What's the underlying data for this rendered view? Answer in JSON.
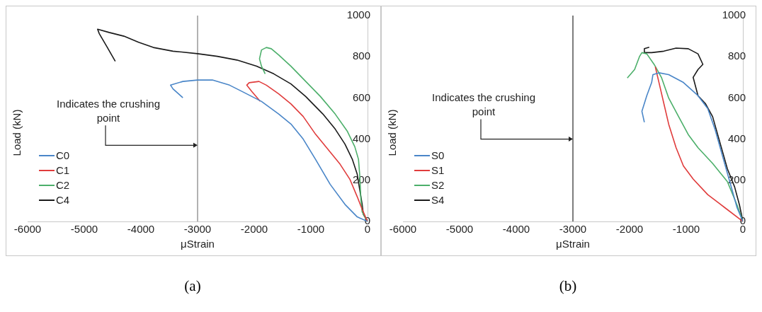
{
  "chart_data": [
    {
      "type": "line",
      "title": "(a)",
      "xlabel": "μStrain",
      "ylabel": "Load (kN)",
      "xlim": [
        -6000,
        0
      ],
      "xticks": [
        -6000,
        -5000,
        -4000,
        -3000,
        -2000,
        -1000,
        0
      ],
      "ylim": [
        0,
        1000
      ],
      "yticks": [
        0,
        200,
        400,
        600,
        800,
        1000
      ],
      "grid": false,
      "legend": "bottom left",
      "ref_lines": [
        {
          "axis": "x",
          "value": -3000,
          "color": "#7f7f7f"
        }
      ],
      "annotations": [
        {
          "text": "Indicates the crushing point",
          "x": -3000,
          "y": 370
        }
      ],
      "series": [
        {
          "name": "C0",
          "color": "#4a86c8",
          "x": [
            0,
            -182,
            -399,
            -659,
            -919,
            -1136,
            -1352,
            -1569,
            -1872,
            -2219,
            -2436,
            -2739,
            -3000,
            -3260,
            -3477,
            -3434,
            -3260
          ],
          "values": [
            0,
            22,
            83,
            180,
            302,
            400,
            473,
            522,
            583,
            632,
            662,
            687,
            687,
            680,
            662,
            644,
            601
          ]
        },
        {
          "name": "C1",
          "color": "#e03c3c",
          "x": [
            0,
            -95,
            -182,
            -312,
            -485,
            -702,
            -919,
            -1136,
            -1352,
            -1569,
            -1786,
            -1916,
            -2089,
            -2132,
            -2046,
            -1894
          ],
          "values": [
            0,
            59,
            120,
            205,
            278,
            351,
            424,
            510,
            571,
            620,
            662,
            680,
            674,
            662,
            632,
            583
          ]
        },
        {
          "name": "C2",
          "color": "#4caf6a",
          "x": [
            0,
            -95,
            -117,
            -139,
            -160,
            -225,
            -355,
            -572,
            -832,
            -1136,
            -1352,
            -1569,
            -1699,
            -1786,
            -1872,
            -1907,
            -1872,
            -1807
          ],
          "values": [
            0,
            46,
            107,
            229,
            302,
            363,
            437,
            522,
            607,
            693,
            754,
            809,
            839,
            845,
            833,
            790,
            754,
            717
          ]
        },
        {
          "name": "C4",
          "color": "#1a1a1a",
          "x": [
            0,
            -74,
            -95,
            -139,
            -182,
            -269,
            -399,
            -572,
            -789,
            -1092,
            -1352,
            -1656,
            -1959,
            -2306,
            -2652,
            -3000,
            -3434,
            -3781,
            -4041,
            -4301,
            -4561,
            -4765,
            -4735,
            -4605,
            -4453
          ],
          "values": [
            0,
            34,
            83,
            156,
            229,
            302,
            376,
            449,
            522,
            607,
            668,
            717,
            754,
            784,
            802,
            815,
            827,
            845,
            870,
            900,
            918,
            934,
            912,
            851,
            778
          ]
        }
      ]
    },
    {
      "type": "line",
      "title": "(b)",
      "xlabel": "μStrain",
      "ylabel": "Load (kN)",
      "xlim": [
        -6000,
        0
      ],
      "xticks": [
        -6000,
        -5000,
        -4000,
        -3000,
        -2000,
        -1000,
        0
      ],
      "ylim": [
        0,
        1000
      ],
      "yticks": [
        0,
        200,
        400,
        600,
        800,
        1000
      ],
      "grid": false,
      "legend": "bottom left",
      "ref_lines": [
        {
          "axis": "x",
          "value": -3000,
          "color": "#262626"
        }
      ],
      "annotations": [
        {
          "text": "Indicates the crushing point",
          "x": -3000,
          "y": 400
        }
      ],
      "series": [
        {
          "name": "S0",
          "color": "#4a86c8",
          "x": [
            0,
            -103,
            -232,
            -362,
            -491,
            -620,
            -792,
            -1050,
            -1309,
            -1481,
            -1588,
            -1610,
            -1696,
            -1782,
            -1739
          ],
          "values": [
            0,
            67,
            194,
            320,
            447,
            548,
            611,
            675,
            713,
            722,
            713,
            675,
            611,
            535,
            482
          ]
        },
        {
          "name": "S1",
          "color": "#e03c3c",
          "x": [
            0,
            -319,
            -620,
            -878,
            -1050,
            -1179,
            -1309,
            -1395,
            -1481,
            -1546
          ],
          "values": [
            0,
            67,
            130,
            206,
            270,
            358,
            472,
            573,
            675,
            751
          ]
        },
        {
          "name": "S2",
          "color": "#4caf6a",
          "x": [
            0,
            -103,
            -275,
            -534,
            -792,
            -964,
            -1136,
            -1309,
            -1438,
            -1567,
            -1696,
            -1782,
            -1825,
            -1911,
            -2040
          ],
          "values": [
            0,
            80,
            194,
            282,
            358,
            422,
            510,
            599,
            700,
            763,
            814,
            820,
            801,
            738,
            697
          ]
        },
        {
          "name": "S4",
          "color": "#1a1a1a",
          "x": [
            0,
            -60,
            -146,
            -275,
            -405,
            -534,
            -663,
            -792,
            -878,
            -792,
            -706,
            -792,
            -964,
            -1179,
            -1395,
            -1610,
            -1739,
            -1739,
            -1653
          ],
          "values": [
            0,
            80,
            168,
            257,
            383,
            509,
            573,
            611,
            700,
            738,
            763,
            814,
            839,
            842,
            827,
            820,
            820,
            839,
            846
          ]
        }
      ]
    }
  ]
}
